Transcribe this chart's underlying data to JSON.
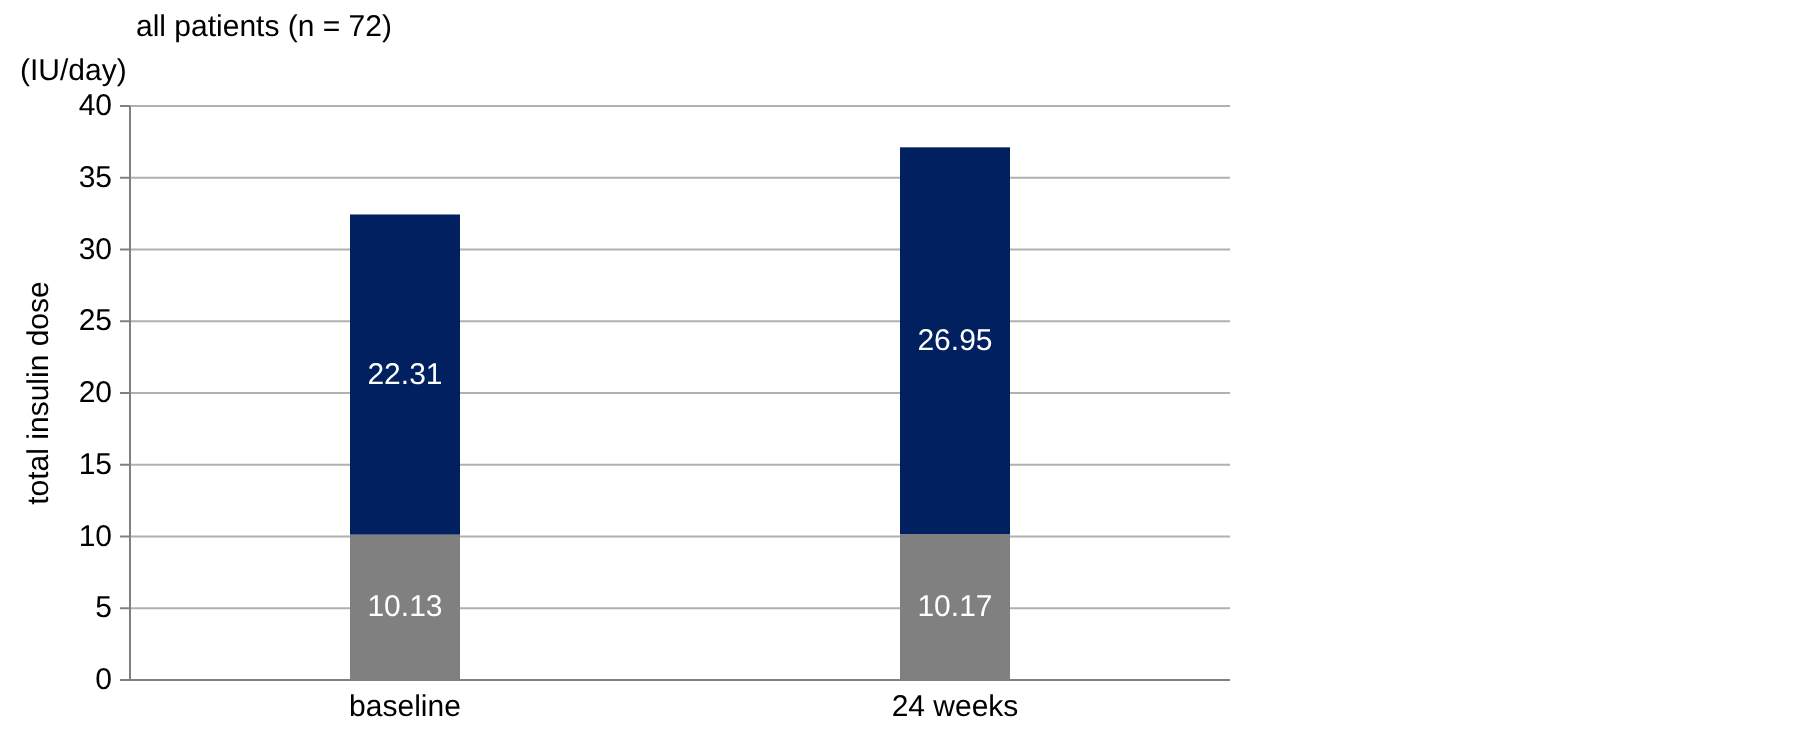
{
  "chart_data": {
    "type": "bar",
    "title": "all patients (n = 72)",
    "ylabel": "total insulin dose",
    "annotations": [
      "(IU/day)"
    ],
    "categories": [
      "baseline",
      "24 weeks"
    ],
    "stacked": true,
    "data_labels": true,
    "grid": "y",
    "ylim": [
      0,
      40
    ],
    "yticks": [
      0,
      5,
      10,
      15,
      20,
      25,
      30,
      35,
      40
    ],
    "series": [
      {
        "color": "#808080",
        "values": [
          10.13,
          10.17
        ]
      },
      {
        "color": "#002060",
        "values": [
          22.31,
          26.95
        ]
      }
    ]
  }
}
